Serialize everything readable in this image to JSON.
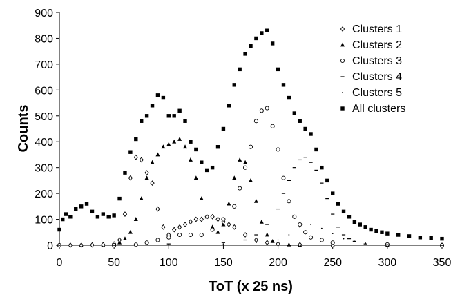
{
  "chart_data": {
    "type": "scatter",
    "title": "",
    "xlabel": "ToT (x 25 ns)",
    "ylabel": "Counts",
    "xlim": [
      0,
      350
    ],
    "ylim": [
      0,
      900
    ],
    "xticks": [
      "0",
      "50",
      "100",
      "150",
      "200",
      "250",
      "300",
      "350"
    ],
    "yticks": [
      "0",
      "100",
      "200",
      "300",
      "400",
      "500",
      "600",
      "700",
      "800",
      "900"
    ],
    "grid": false,
    "legend_position": "top-right",
    "series": [
      {
        "name": "Clusters 1",
        "marker": "open-diamond",
        "color": "#000000",
        "x": [
          0,
          10,
          20,
          30,
          40,
          50,
          55,
          60,
          65,
          70,
          75,
          80,
          85,
          90,
          95,
          100,
          105,
          110,
          115,
          120,
          125,
          130,
          135,
          140,
          145,
          150,
          155,
          160,
          170,
          180,
          190,
          200,
          220,
          250,
          300,
          350
        ],
        "y": [
          0,
          0,
          0,
          1,
          2,
          5,
          20,
          120,
          260,
          340,
          330,
          280,
          240,
          140,
          70,
          40,
          60,
          70,
          80,
          90,
          100,
          100,
          110,
          110,
          100,
          90,
          80,
          70,
          40,
          20,
          10,
          5,
          2,
          0,
          0,
          0
        ]
      },
      {
        "name": "Clusters 2",
        "marker": "filled-triangle",
        "color": "#000000",
        "x": [
          0,
          20,
          40,
          50,
          55,
          60,
          65,
          70,
          75,
          80,
          85,
          90,
          95,
          100,
          105,
          110,
          115,
          120,
          125,
          130,
          135,
          140,
          145,
          150,
          155,
          160,
          165,
          170,
          175,
          180,
          185,
          190,
          195,
          200,
          210,
          220,
          250,
          300,
          350
        ],
        "y": [
          0,
          0,
          0,
          2,
          10,
          25,
          50,
          100,
          180,
          260,
          320,
          350,
          380,
          390,
          400,
          410,
          380,
          330,
          260,
          180,
          110,
          70,
          50,
          80,
          160,
          260,
          330,
          320,
          250,
          170,
          90,
          40,
          15,
          5,
          2,
          0,
          0,
          0,
          0
        ]
      },
      {
        "name": "Clusters 3",
        "marker": "open-circle",
        "color": "#000000",
        "x": [
          0,
          50,
          70,
          80,
          90,
          100,
          110,
          120,
          130,
          140,
          150,
          160,
          165,
          170,
          175,
          180,
          185,
          190,
          195,
          200,
          205,
          210,
          215,
          220,
          225,
          230,
          240,
          250,
          300,
          350
        ],
        "y": [
          0,
          0,
          2,
          10,
          20,
          30,
          40,
          40,
          40,
          60,
          100,
          150,
          220,
          300,
          380,
          480,
          520,
          530,
          460,
          370,
          260,
          170,
          110,
          80,
          50,
          30,
          20,
          10,
          3,
          0
        ],
        "note": ""
      },
      {
        "name": "Clusters 4",
        "marker": "dash",
        "color": "#000000",
        "x": [
          0,
          50,
          100,
          150,
          170,
          180,
          190,
          200,
          205,
          210,
          215,
          220,
          225,
          230,
          235,
          240,
          245,
          250,
          255,
          260,
          265,
          270,
          280,
          300,
          350
        ],
        "y": [
          0,
          0,
          5,
          10,
          20,
          40,
          80,
          140,
          200,
          250,
          300,
          330,
          340,
          320,
          290,
          240,
          180,
          120,
          70,
          40,
          25,
          15,
          5,
          2,
          0
        ]
      },
      {
        "name": "Clusters 5",
        "marker": "small-dot",
        "color": "#000000",
        "x": [
          0,
          50,
          100,
          150,
          180,
          200,
          210,
          220,
          230,
          240,
          250,
          260,
          270,
          280,
          300,
          350
        ],
        "y": [
          0,
          0,
          2,
          5,
          10,
          20,
          40,
          70,
          80,
          65,
          45,
          25,
          15,
          8,
          2,
          0
        ]
      },
      {
        "name": "All clusters",
        "marker": "filled-square",
        "color": "#000000",
        "x": [
          0,
          3,
          6,
          10,
          15,
          20,
          25,
          30,
          35,
          40,
          45,
          50,
          55,
          60,
          65,
          70,
          75,
          80,
          85,
          90,
          95,
          100,
          105,
          110,
          115,
          120,
          125,
          130,
          135,
          140,
          145,
          150,
          155,
          160,
          165,
          170,
          175,
          180,
          185,
          190,
          195,
          200,
          205,
          210,
          215,
          220,
          225,
          230,
          235,
          240,
          245,
          250,
          255,
          260,
          265,
          270,
          275,
          280,
          285,
          290,
          295,
          300,
          310,
          320,
          330,
          340,
          350
        ],
        "y": [
          60,
          100,
          120,
          110,
          140,
          150,
          160,
          130,
          110,
          120,
          110,
          115,
          180,
          280,
          360,
          410,
          480,
          500,
          540,
          580,
          570,
          500,
          500,
          520,
          480,
          400,
          370,
          320,
          290,
          300,
          380,
          450,
          540,
          620,
          680,
          740,
          770,
          800,
          820,
          830,
          780,
          680,
          620,
          570,
          510,
          480,
          450,
          430,
          370,
          300,
          250,
          200,
          160,
          130,
          110,
          90,
          80,
          70,
          60,
          55,
          50,
          45,
          40,
          35,
          30,
          28,
          25
        ]
      }
    ]
  }
}
